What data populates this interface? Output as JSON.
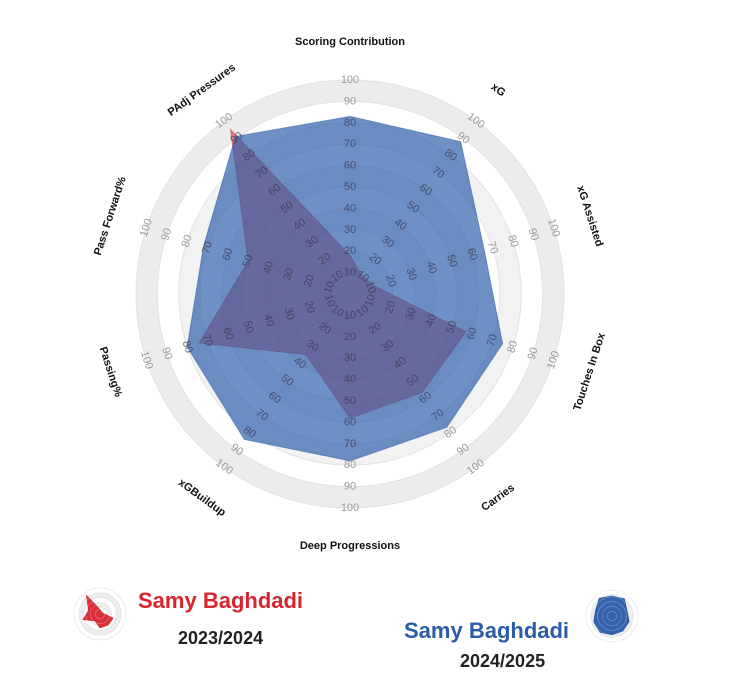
{
  "chart_data": {
    "type": "radar",
    "axes": [
      "Scoring Contribution",
      "xG",
      "xG Assisted",
      "Touches In Box",
      "Carries",
      "Deep Progressions",
      "xGBuildup",
      "Passing%",
      "Pass Forward%",
      "PAdj Pressures"
    ],
    "tick_labels": [
      "10",
      "20",
      "30",
      "40",
      "50",
      "60",
      "70",
      "80",
      "90",
      "100"
    ],
    "range": [
      0,
      100
    ],
    "series": [
      {
        "name": "Samy Baghdadi",
        "season": "2023/2024",
        "color": "#d7262f",
        "values": [
          18,
          10,
          12,
          57,
          57,
          58,
          35,
          74,
          50,
          95
        ]
      },
      {
        "name": "Samy Baghdadi",
        "season": "2024/2025",
        "color": "#2a5ca8",
        "values": [
          83,
          88,
          66,
          75,
          77,
          78,
          84,
          80,
          72,
          91
        ]
      }
    ]
  },
  "legend": [
    {
      "name": "Samy Baghdadi",
      "season": "2023/2024",
      "color": "#d7262f"
    },
    {
      "name": "Samy Baghdadi",
      "season": "2024/2025",
      "color": "#2a5ca8"
    }
  ]
}
